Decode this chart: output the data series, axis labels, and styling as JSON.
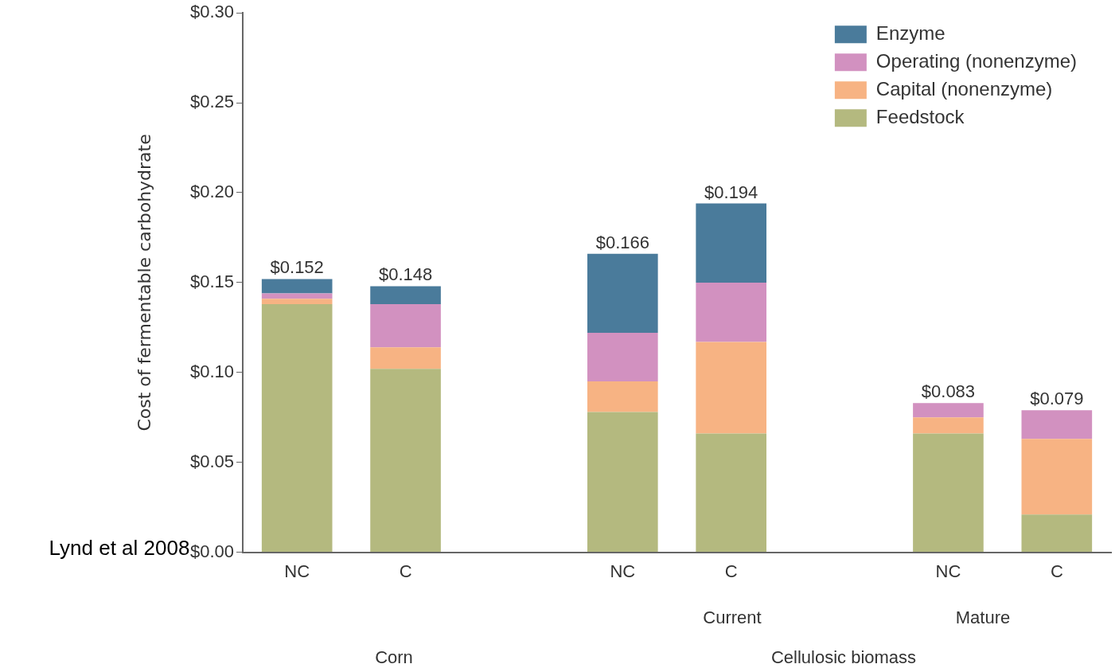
{
  "chart_data": {
    "type": "bar",
    "stacked": true,
    "ylabel": "Cost of fermentable carbohydrate",
    "categories": [
      "NC",
      "C",
      null,
      "NC",
      "C",
      null,
      "NC",
      "C"
    ],
    "series": [
      {
        "name": "Feedstock",
        "color": "#b4b97f",
        "values": [
          0.138,
          0.102,
          null,
          0.078,
          0.066,
          null,
          0.066,
          0.021
        ]
      },
      {
        "name": "Capital (nonenzyme)",
        "color": "#f7b383",
        "values": [
          0.003,
          0.012,
          null,
          0.017,
          0.051,
          null,
          0.009,
          0.042
        ]
      },
      {
        "name": "Operating (nonenzyme)",
        "color": "#d291c0",
        "values": [
          0.003,
          0.024,
          null,
          0.027,
          0.033,
          null,
          0.008,
          0.016
        ]
      },
      {
        "name": "Enzyme",
        "color": "#4a7b9b",
        "values": [
          0.008,
          0.01,
          null,
          0.044,
          0.044,
          null,
          0,
          0
        ]
      }
    ],
    "totals": [
      "$0.152",
      "$0.148",
      null,
      "$0.166",
      "$0.194",
      null,
      "$0.083",
      "$0.079"
    ],
    "ylim": [
      0,
      0.3
    ],
    "yticks": [
      {
        "value": 0,
        "label": "$0.00"
      },
      {
        "value": 0.05,
        "label": "$0.05"
      },
      {
        "value": 0.1,
        "label": "$0.10"
      },
      {
        "value": 0.15,
        "label": "$0.15"
      },
      {
        "value": 0.2,
        "label": "$0.20"
      },
      {
        "value": 0.25,
        "label": "$0.25"
      },
      {
        "value": 0.3,
        "label": "$0.30"
      }
    ],
    "grid": false,
    "legend": "top right",
    "annotations": [
      "Current",
      "Mature",
      "Corn",
      "Cellulosic biomass",
      "Lynd et al 2008"
    ]
  }
}
